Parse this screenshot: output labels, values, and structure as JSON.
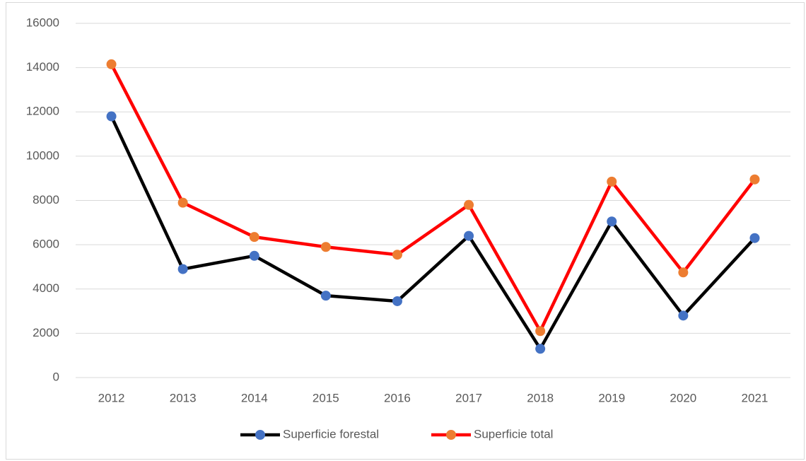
{
  "chart_data": {
    "type": "line",
    "categories": [
      "2012",
      "2013",
      "2014",
      "2015",
      "2016",
      "2017",
      "2018",
      "2019",
      "2020",
      "2021"
    ],
    "series": [
      {
        "name": "Superficie forestal",
        "color": "#000000",
        "marker_color": "#4472c4",
        "values": [
          11800,
          4900,
          5500,
          3700,
          3450,
          6400,
          1300,
          7050,
          2800,
          6300
        ]
      },
      {
        "name": "Superficie total",
        "color": "#ff0000",
        "marker_color": "#ed7d31",
        "values": [
          14150,
          7900,
          6350,
          5900,
          5550,
          7800,
          2100,
          8850,
          4750,
          8950
        ]
      }
    ],
    "ylim": [
      0,
      16000
    ],
    "yticks": [
      0,
      2000,
      4000,
      6000,
      8000,
      10000,
      12000,
      14000,
      16000
    ],
    "grid": true,
    "legend": "bottom"
  }
}
